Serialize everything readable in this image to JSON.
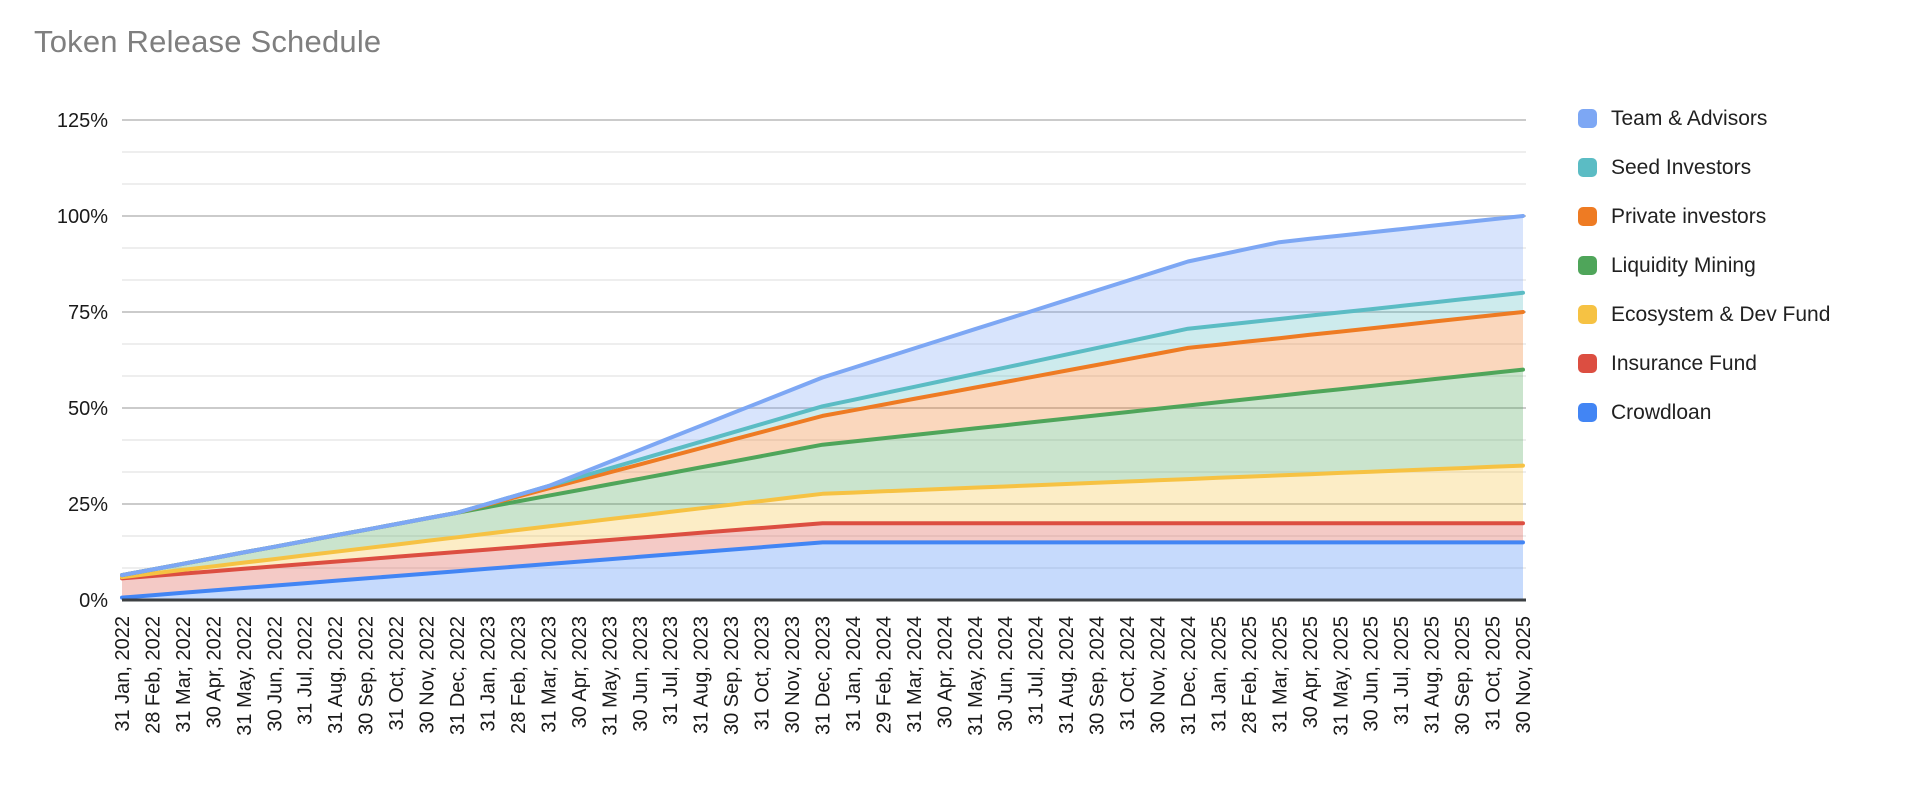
{
  "chart_data": {
    "type": "area",
    "stacked": true,
    "title": "Token Release Schedule",
    "xlabel": "",
    "ylabel": "",
    "grid": true,
    "legend_position": "right",
    "y_axis": {
      "ticks": [
        "0%",
        "25%",
        "50%",
        "75%",
        "100%",
        "125%"
      ],
      "tick_values": [
        0,
        25,
        50,
        75,
        100,
        125
      ],
      "ylim": [
        0,
        125
      ],
      "minor_gridline_step_pct": 8.333
    },
    "categories": [
      "31 Jan, 2022",
      "28 Feb, 2022",
      "31 Mar, 2022",
      "30 Apr, 2022",
      "31 May, 2022",
      "30 Jun, 2022",
      "31 Jul, 2022",
      "31 Aug, 2022",
      "30 Sep, 2022",
      "31 Oct, 2022",
      "30 Nov, 2022",
      "31 Dec, 2022",
      "31 Jan, 2023",
      "28 Feb, 2023",
      "31 Mar, 2023",
      "30 Apr, 2023",
      "31 May, 2023",
      "30 Jun, 2023",
      "31 Jul, 2023",
      "31 Aug, 2023",
      "30 Sep, 2023",
      "31 Oct, 2023",
      "30 Nov, 2023",
      "31 Dec, 2023",
      "31 Jan, 2024",
      "29 Feb, 2024",
      "31 Mar, 2024",
      "30 Apr, 2024",
      "31 May, 2024",
      "30 Jun, 2024",
      "31 Jul, 2024",
      "31 Aug, 2024",
      "30 Sep, 2024",
      "31 Oct, 2024",
      "30 Nov, 2024",
      "31 Dec, 2024",
      "31 Jan, 2025",
      "28 Feb, 2025",
      "31 Mar, 2025",
      "30 Apr, 2025",
      "31 May, 2025",
      "30 Jun, 2025",
      "31 Jul, 2025",
      "31 Aug, 2025",
      "30 Sep, 2025",
      "31 Oct, 2025",
      "30 Nov, 2025"
    ],
    "stack_order": "bottom-to-top",
    "series": [
      {
        "name": "Crowdloan",
        "color": "#4285F4",
        "values": [
          0.63,
          1.25,
          1.88,
          2.5,
          3.13,
          3.75,
          4.38,
          5,
          5.63,
          6.25,
          6.88,
          7.5,
          8.13,
          8.75,
          9.38,
          10,
          10.63,
          11.25,
          11.88,
          12.5,
          13.13,
          13.75,
          14.38,
          15,
          15,
          15,
          15,
          15,
          15,
          15,
          15,
          15,
          15,
          15,
          15,
          15,
          15,
          15,
          15,
          15,
          15,
          15,
          15,
          15,
          15,
          15,
          15
        ]
      },
      {
        "name": "Insurance Fund",
        "color": "#DC4E41",
        "values": [
          5,
          5,
          5,
          5,
          5,
          5,
          5,
          5,
          5,
          5,
          5,
          5,
          5,
          5,
          5,
          5,
          5,
          5,
          5,
          5,
          5,
          5,
          5,
          5,
          5,
          5,
          5,
          5,
          5,
          5,
          5,
          5,
          5,
          5,
          5,
          5,
          5,
          5,
          5,
          5,
          5,
          5,
          5,
          5,
          5,
          5,
          5
        ]
      },
      {
        "name": "Ecosystem & Dev Fund",
        "color": "#F6C243",
        "values": [
          0.32,
          0.64,
          0.96,
          1.28,
          1.6,
          1.91,
          2.23,
          2.55,
          2.87,
          3.19,
          3.51,
          3.83,
          4.15,
          4.47,
          4.79,
          5.11,
          5.43,
          5.74,
          6.06,
          6.38,
          6.7,
          7.02,
          7.34,
          7.66,
          7.98,
          8.3,
          8.62,
          8.94,
          9.26,
          9.57,
          9.89,
          10.21,
          10.53,
          10.85,
          11.17,
          11.49,
          11.81,
          12.13,
          12.45,
          12.77,
          13.09,
          13.4,
          13.72,
          14.04,
          14.36,
          14.68,
          15
        ]
      },
      {
        "name": "Liquidity Mining",
        "color": "#4FA55A",
        "values": [
          0.53,
          1.06,
          1.6,
          2.13,
          2.66,
          3.19,
          3.72,
          4.26,
          4.79,
          5.32,
          5.85,
          6.38,
          6.91,
          7.45,
          7.98,
          8.51,
          9.04,
          9.57,
          10.11,
          10.64,
          11.17,
          11.7,
          12.23,
          12.77,
          13.3,
          13.83,
          14.36,
          14.89,
          15.43,
          15.96,
          16.49,
          17.02,
          17.55,
          18.09,
          18.62,
          19.15,
          19.68,
          20.21,
          20.74,
          21.28,
          21.81,
          22.34,
          22.87,
          23.4,
          23.94,
          24.47,
          25
        ]
      },
      {
        "name": "Private investors",
        "color": "#EE7B23",
        "values": [
          0,
          0,
          0,
          0,
          0,
          0,
          0,
          0,
          0,
          0,
          0,
          0,
          0.63,
          1.25,
          1.88,
          2.5,
          3.13,
          3.75,
          4.38,
          5,
          5.63,
          6.25,
          6.88,
          7.5,
          8.13,
          8.75,
          9.38,
          10,
          10.63,
          11.25,
          11.88,
          12.5,
          13.13,
          13.75,
          14.38,
          15,
          15,
          15,
          15,
          15,
          15,
          15,
          15,
          15,
          15,
          15,
          15
        ]
      },
      {
        "name": "Seed Investors",
        "color": "#5BBCC4",
        "values": [
          0,
          0,
          0,
          0,
          0,
          0,
          0,
          0,
          0,
          0,
          0,
          0,
          0.21,
          0.42,
          0.63,
          0.83,
          1.04,
          1.25,
          1.46,
          1.67,
          1.88,
          2.08,
          2.29,
          2.5,
          2.71,
          2.92,
          3.13,
          3.33,
          3.54,
          3.75,
          3.96,
          4.17,
          4.38,
          4.58,
          4.79,
          5,
          5,
          5,
          5,
          5,
          5,
          5,
          5,
          5,
          5,
          5,
          5
        ]
      },
      {
        "name": "Team & Advisors",
        "color": "#7DA7F4",
        "values": [
          0,
          0,
          0,
          0,
          0,
          0,
          0,
          0,
          0,
          0,
          0,
          0,
          0,
          0,
          0,
          0.83,
          1.67,
          2.5,
          3.33,
          4.17,
          5,
          5.83,
          6.67,
          7.5,
          8.33,
          9.17,
          10,
          10.83,
          11.67,
          12.5,
          13.33,
          14.17,
          15,
          15.83,
          16.67,
          17.5,
          18.33,
          19.17,
          20,
          20,
          20,
          20,
          20,
          20,
          20,
          20,
          20
        ]
      }
    ],
    "legend": [
      {
        "label": "Team & Advisors",
        "color": "#7DA7F4"
      },
      {
        "label": "Seed Investors",
        "color": "#5BBCC4"
      },
      {
        "label": "Private investors",
        "color": "#EE7B23"
      },
      {
        "label": "Liquidity Mining",
        "color": "#4FA55A"
      },
      {
        "label": "Ecosystem & Dev Fund",
        "color": "#F6C243"
      },
      {
        "label": "Insurance Fund",
        "color": "#DC4E41"
      },
      {
        "label": "Crowdloan",
        "color": "#4285F4"
      }
    ]
  },
  "colors": {
    "background": "#FFFFFF",
    "title_text": "#7F7F7F",
    "axis_text": "#1A1A1A",
    "axis_line": "#3C4043",
    "grid_major": "#CBCBCB",
    "grid_minor": "#E9E9E9",
    "fill_opacity": 0.3
  }
}
